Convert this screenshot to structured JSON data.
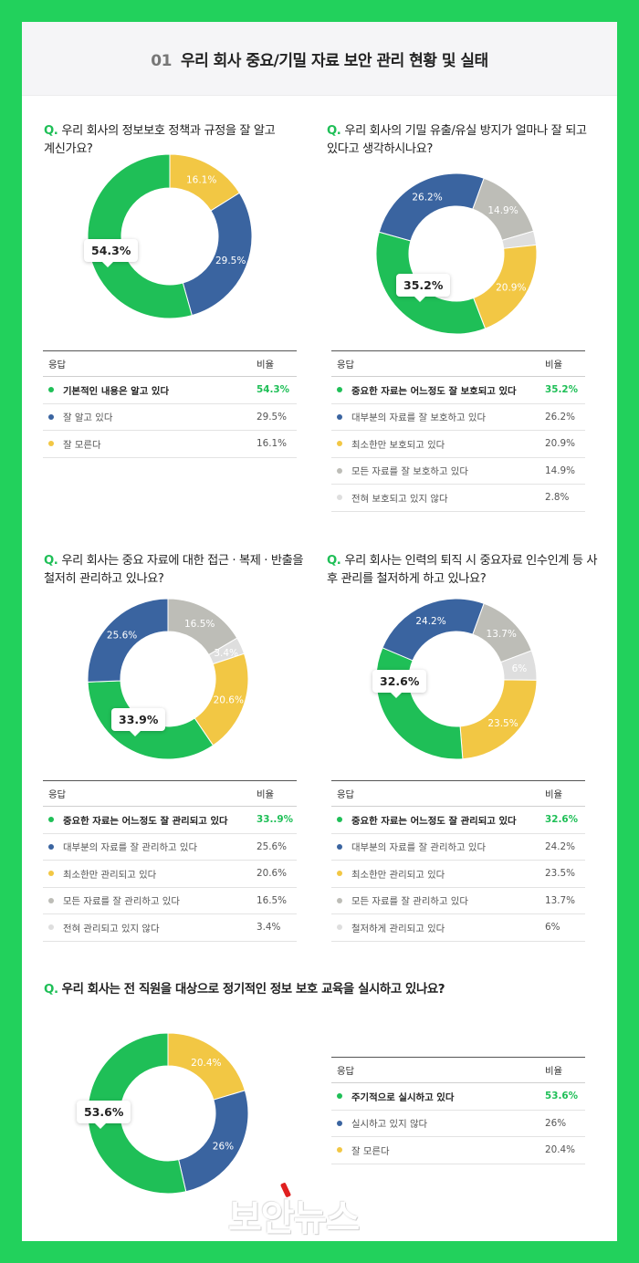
{
  "header": {
    "number": "01",
    "title": "우리 회사 중요/기밀 자료 보안 관리 현황 및 실태"
  },
  "colors": {
    "green": "#1fbf57",
    "blue": "#3a64a0",
    "yellow": "#f2c744",
    "gray": "#bdbdb7",
    "lightgray": "#dedede"
  },
  "table_headers": {
    "answer": "응답",
    "ratio": "비율"
  },
  "chart_data": [
    {
      "type": "pie",
      "question_mark": "Q.",
      "question": "우리 회사의 정보보호 정책과 규정을 잘 알고 계신가요?",
      "categories": [
        "기본적인 내용은 알고 있다",
        "잘 알고 있다",
        "잘 모른다"
      ],
      "values": [
        54.3,
        29.5,
        16.1
      ],
      "value_labels": [
        "54.3%",
        "29.5%",
        "16.1%"
      ],
      "table_values": [
        "54.3%",
        "29.5%",
        "16.1%"
      ],
      "colors": [
        "#1fbf57",
        "#3a64a0",
        "#f2c744"
      ]
    },
    {
      "type": "pie",
      "question_mark": "Q.",
      "question": "우리 회사의 기밀 유출/유실 방지가 얼마나 잘 되고 있다고 생각하시나요?",
      "categories": [
        "중요한 자료는 어느정도 잘 보호되고 있다",
        "대부분의 자료를 잘 보호하고 있다",
        "최소한만 보호되고 있다",
        "모든 자료를 잘 보호하고 있다",
        "전혀 보호되고 있지 않다"
      ],
      "values": [
        35.2,
        26.2,
        20.9,
        14.9,
        2.8
      ],
      "value_labels": [
        "35.2%",
        "26.2%",
        "20.9%",
        "14.9%",
        ""
      ],
      "table_values": [
        "35.2%",
        "26.2%",
        "20.9%",
        "14.9%",
        "2.8%"
      ],
      "colors": [
        "#1fbf57",
        "#3a64a0",
        "#f2c744",
        "#bdbdb7",
        "#dedede"
      ]
    },
    {
      "type": "pie",
      "question_mark": "Q.",
      "question": "우리 회사는 중요 자료에 대한 접근 · 복제 · 반출을 철저히 관리하고 있나요?",
      "categories": [
        "중요한 자료는 어느정도 잘 관리되고 있다",
        "대부분의 자료를 잘 관리하고 있다",
        "최소한만 관리되고 있다",
        "모든 자료를 잘 관리하고 있다",
        "전혀 관리되고 있지 않다"
      ],
      "values": [
        33.9,
        25.6,
        20.6,
        16.5,
        3.4
      ],
      "value_labels": [
        "33.9%",
        "25.6%",
        "20.6%",
        "16.5%",
        "3.4%"
      ],
      "table_values": [
        "33..9%",
        "25.6%",
        "20.6%",
        "16.5%",
        "3.4%"
      ],
      "colors": [
        "#1fbf57",
        "#3a64a0",
        "#f2c744",
        "#bdbdb7",
        "#dedede"
      ]
    },
    {
      "type": "pie",
      "question_mark": "Q.",
      "question": "우리 회사는 인력의 퇴직 시 중요자료 인수인계 등 사후 관리를 철저하게 하고 있나요?",
      "categories": [
        "중요한 자료는 어느정도 잘 관리되고 있다",
        "대부분의 자료를 잘 관리하고 있다",
        "최소한만 관리되고 있다",
        "모든 자료를 잘 관리하고 있다",
        "철저하게 관리되고 있다"
      ],
      "values": [
        32.6,
        24.2,
        23.5,
        13.7,
        6
      ],
      "value_labels": [
        "32.6%",
        "24.2%",
        "23.5%",
        "13.7%",
        "6%"
      ],
      "table_values": [
        "32.6%",
        "24.2%",
        "23.5%",
        "13.7%",
        "6%"
      ],
      "colors": [
        "#1fbf57",
        "#3a64a0",
        "#f2c744",
        "#bdbdb7",
        "#dedede"
      ]
    },
    {
      "type": "pie",
      "question_mark": "Q.",
      "question": "우리 회사는 전 직원을 대상으로 정기적인 정보 보호 교육을 실시하고 있나요?",
      "categories": [
        "주기적으로 실시하고 있다",
        "실시하고 있지 않다",
        "잘 모른다"
      ],
      "values": [
        53.6,
        26,
        20.4
      ],
      "value_labels": [
        "53.6%",
        "26%",
        "20.4%"
      ],
      "table_values": [
        "53.6%",
        "26%",
        "20.4%"
      ],
      "colors": [
        "#1fbf57",
        "#3a64a0",
        "#f2c744"
      ]
    }
  ],
  "logo": {
    "text": "보안뉴스"
  }
}
